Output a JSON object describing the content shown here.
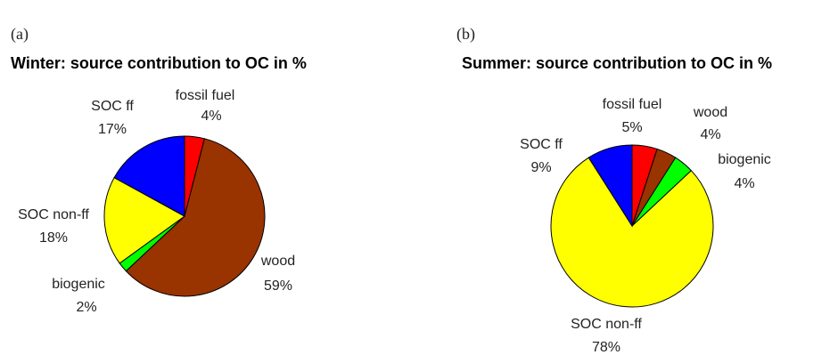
{
  "chart_data": [
    {
      "type": "pie",
      "panel_label": "(a)",
      "title": "Winter: source contribution to OC in %",
      "categories": [
        "fossil fuel",
        "wood",
        "biogenic",
        "SOC non-ff",
        "SOC ff"
      ],
      "values": [
        4,
        59,
        2,
        18,
        17
      ],
      "value_labels": [
        "4%",
        "59%",
        "2%",
        "18%",
        "17%"
      ],
      "colors": [
        "#ff0000",
        "#993300",
        "#00ff00",
        "#ffff00",
        "#0000ff"
      ]
    },
    {
      "type": "pie",
      "panel_label": "(b)",
      "title": "Summer: source contribution to OC in %",
      "categories": [
        "fossil fuel",
        "wood",
        "biogenic",
        "SOC non-ff",
        "SOC ff"
      ],
      "values": [
        5,
        4,
        4,
        78,
        9
      ],
      "value_labels": [
        "5%",
        "4%",
        "4%",
        "78%",
        "9%"
      ],
      "colors": [
        "#ff0000",
        "#993300",
        "#00ff00",
        "#ffff00",
        "#0000ff"
      ]
    }
  ]
}
